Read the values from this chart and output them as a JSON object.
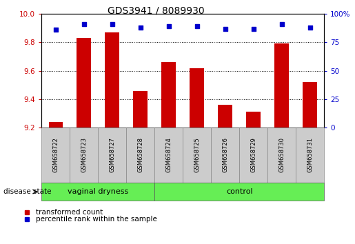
{
  "title": "GDS3941 / 8089930",
  "samples": [
    "GSM658722",
    "GSM658723",
    "GSM658727",
    "GSM658728",
    "GSM658724",
    "GSM658725",
    "GSM658726",
    "GSM658729",
    "GSM658730",
    "GSM658731"
  ],
  "bar_values": [
    9.24,
    9.83,
    9.87,
    9.46,
    9.66,
    9.62,
    9.36,
    9.31,
    9.79,
    9.52
  ],
  "dot_values": [
    86,
    91,
    91,
    88,
    89,
    89,
    87,
    87,
    91,
    88
  ],
  "ylim_left": [
    9.2,
    10.0
  ],
  "ylim_right": [
    0,
    100
  ],
  "yticks_left": [
    9.2,
    9.4,
    9.6,
    9.8,
    10.0
  ],
  "yticks_right": [
    0,
    25,
    50,
    75,
    100
  ],
  "ytick_right_labels": [
    "0",
    "25",
    "50",
    "75",
    "100%"
  ],
  "bar_color": "#cc0000",
  "dot_color": "#0000cc",
  "group1_label": "vaginal dryness",
  "group2_label": "control",
  "group1_count": 4,
  "group2_count": 6,
  "group_bg_color": "#66ee55",
  "sample_bg_color": "#cccccc",
  "disease_state_label": "disease state",
  "legend1": "transformed count",
  "legend2": "percentile rank within the sample",
  "bar_color_hex": "#cc0000",
  "dot_color_hex": "#0000cc",
  "title_fontsize": 10,
  "tick_fontsize": 7.5,
  "sample_fontsize": 6.0,
  "legend_fontsize": 7.5,
  "group_fontsize": 8.0
}
